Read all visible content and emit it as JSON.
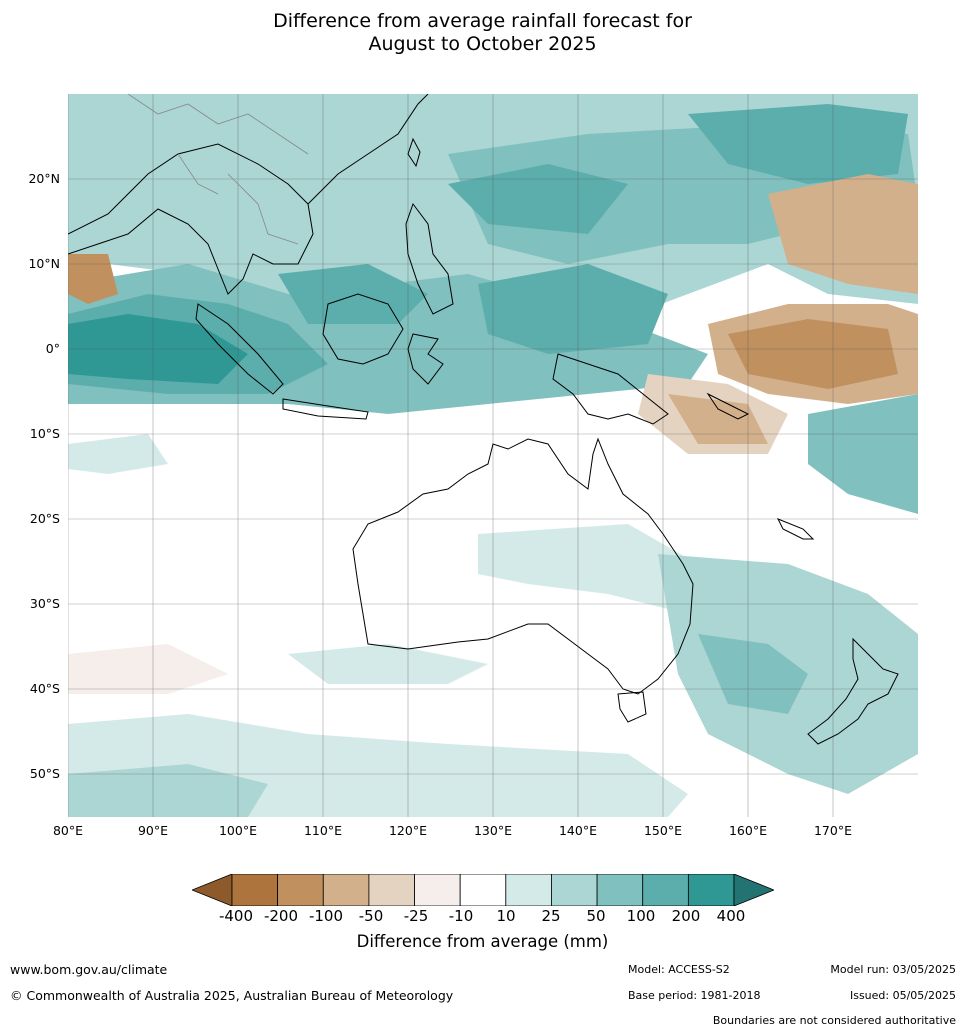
{
  "title_line1": "Difference from average rainfall forecast for",
  "title_line2": "August to October 2025",
  "lat_labels": [
    "20°N",
    "10°N",
    "0°",
    "10°S",
    "20°S",
    "30°S",
    "40°S",
    "50°S"
  ],
  "lon_labels": [
    "80°E",
    "90°E",
    "100°E",
    "110°E",
    "120°E",
    "130°E",
    "140°E",
    "150°E",
    "160°E",
    "170°E"
  ],
  "colorbar": {
    "ticks": [
      "-400",
      "-200",
      "-100",
      "-50",
      "-25",
      "-10",
      "10",
      "25",
      "50",
      "100",
      "200",
      "400"
    ],
    "colors": [
      "#8c5a2b",
      "#ad743d",
      "#c0915f",
      "#d3b08c",
      "#e5d3c1",
      "#f5eeea",
      "#ffffff",
      "#d4eae8",
      "#abd6d4",
      "#80c0be",
      "#5caeac",
      "#2f9794",
      "#237372"
    ],
    "title": "Difference from average (mm)"
  },
  "footer": {
    "website": "www.bom.gov.au/climate",
    "copyright": "© Commonwealth of Australia 2025, Australian Bureau of Meteorology",
    "model": "Model: ACCESS-S2",
    "base_period": "Base period: 1981-2018",
    "model_run": "Model run: 03/05/2025",
    "issued": "Issued: 05/05/2025",
    "boundaries_note": "Boundaries are not considered authoritative"
  }
}
